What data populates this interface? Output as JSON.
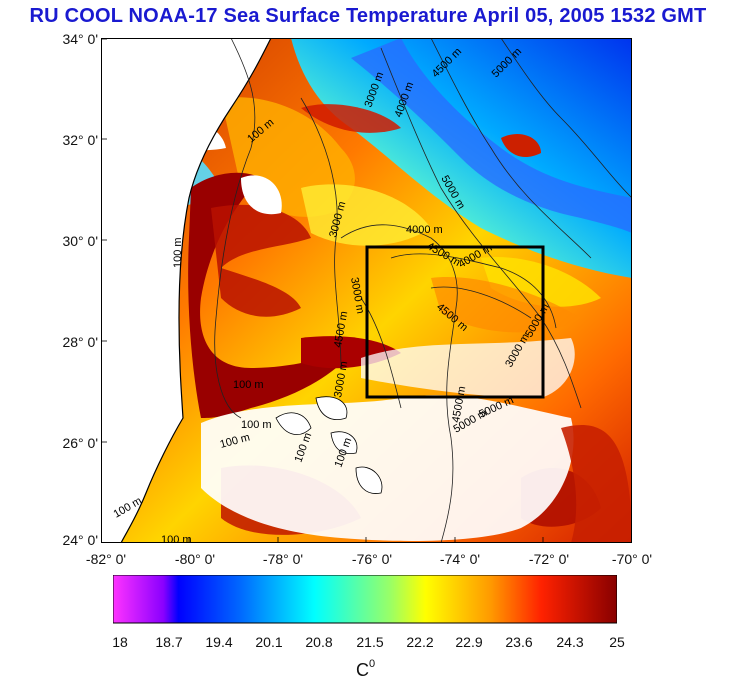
{
  "title": "RU COOL  NOAA-17 Sea Surface Temperature April 05, 2005 1532 GMT",
  "map": {
    "lat_labels": [
      "34° 0'",
      "32° 0'",
      "30° 0'",
      "28° 0'",
      "26° 0'",
      "24° 0'"
    ],
    "lon_labels": [
      "-82° 0'",
      "-80° 0'",
      "-78° 0'",
      "-76° 0'",
      "-74° 0'",
      "-72° 0'",
      "-70° 0'"
    ],
    "lat_range": [
      24,
      34
    ],
    "lon_range": [
      -82,
      -70
    ],
    "contour_labels": [
      "3000 m",
      "4500 m",
      "5000 m",
      "100 m",
      "4000 m",
      "3000 m",
      "5000 m",
      "4000 m",
      "4500 m",
      "4000 m",
      "3000 m",
      "4500 m",
      "100 m",
      "4500 m",
      "3000 m",
      "5000 m",
      "5000 m",
      "100 m",
      "3000 m",
      "4500 m",
      "100 m",
      "100 m",
      "5000 m",
      "100 m",
      "100 m",
      "100 m",
      "100 m"
    ],
    "study_box": {
      "lon_min": -76,
      "lon_max": -72,
      "lat_min": 27,
      "lat_max": 30
    },
    "colors": {
      "land": "#ffffff",
      "coast": "#000000",
      "box": "#000000"
    }
  },
  "colorbar": {
    "ticks": [
      "18",
      "18.7",
      "19.4",
      "20.1",
      "20.8",
      "21.5",
      "22.2",
      "22.9",
      "23.6",
      "24.3",
      "25"
    ],
    "unit": "C",
    "unit_sup": "0",
    "range": [
      18,
      25
    ],
    "stops": [
      "#ff33ff",
      "#8a00ff",
      "#0000ff",
      "#0055ff",
      "#00aaff",
      "#00ffff",
      "#aaff66",
      "#ffff00",
      "#ffaa00",
      "#ff3300",
      "#cc0000",
      "#880000"
    ]
  }
}
